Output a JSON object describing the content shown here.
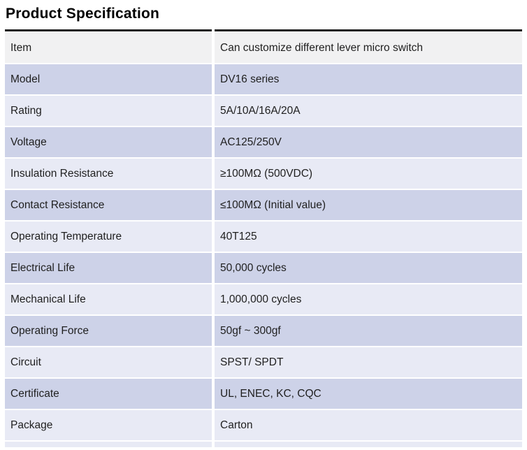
{
  "page": {
    "title": "Product Specification"
  },
  "table": {
    "columns": [
      "label",
      "value"
    ],
    "rows": [
      {
        "label": "Item",
        "value": "Can customize different lever micro switch",
        "style": "header"
      },
      {
        "label": "Model",
        "value": "DV16 series",
        "style": "dark"
      },
      {
        "label": "Rating",
        "value": "5A/10A/16A/20A",
        "style": "light"
      },
      {
        "label": "Voltage",
        "value": "AC125/250V",
        "style": "dark"
      },
      {
        "label": "Insulation Resistance",
        "value": "≥100MΩ (500VDC)",
        "style": "light"
      },
      {
        "label": "Contact Resistance",
        "value": "≤100MΩ (Initial value)",
        "style": "dark"
      },
      {
        "label": "Operating Temperature",
        "value": "40T125",
        "style": "light"
      },
      {
        "label": "Electrical Life",
        "value": "50,000 cycles",
        "style": "dark"
      },
      {
        "label": "Mechanical Life",
        "value": "1,000,000 cycles",
        "style": "light"
      },
      {
        "label": "Operating Force",
        "value": "50gf ~ 300gf",
        "style": "dark"
      },
      {
        "label": "Circuit",
        "value": "SPST/ SPDT",
        "style": "light"
      },
      {
        "label": "Certificate",
        "value": "UL, ENEC, KC, CQC",
        "style": "dark"
      },
      {
        "label": "Package",
        "value": "Carton",
        "style": "light"
      }
    ],
    "colors": {
      "header_bg": "#f1f1f2",
      "dark_bg": "#cdd2e8",
      "light_bg": "#e8eaf5",
      "rule": "#1a1a1a",
      "text": "#1f1f1f"
    }
  }
}
